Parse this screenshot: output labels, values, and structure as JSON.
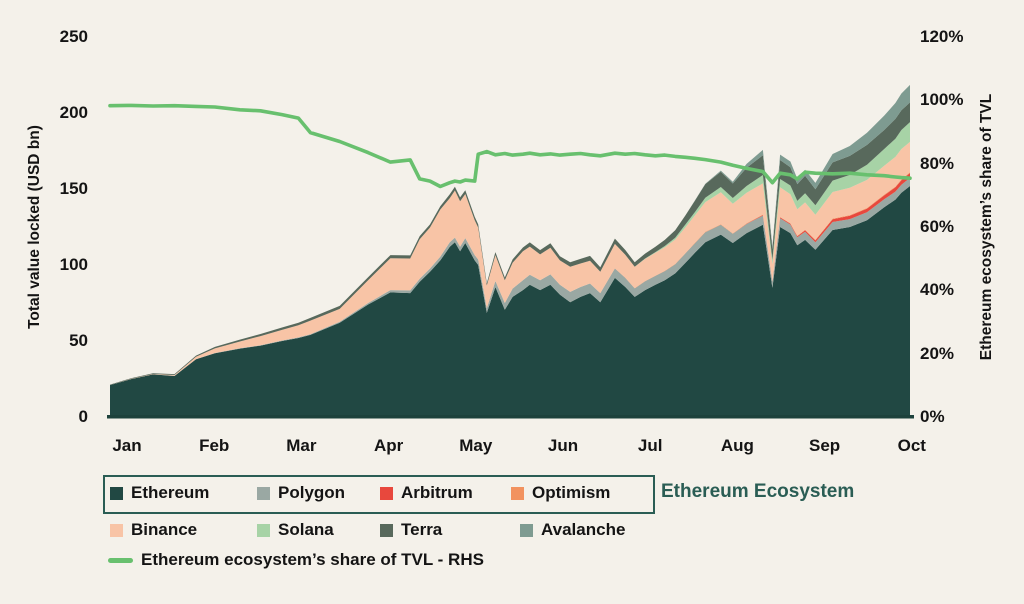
{
  "page": {
    "background": "#f4f1ea",
    "text_color": "#141414",
    "accent_teal": "#2a5d54",
    "baseline_color": "#1d423c"
  },
  "chart_data": {
    "type": "stacked-area+line",
    "title": "",
    "units": "USD bn",
    "grid": "off",
    "legend_position": "bottom",
    "left_axis": {
      "title": "Total value locked (USD bn)",
      "tick_labels": [
        "0",
        "50",
        "100",
        "150",
        "200",
        "250"
      ],
      "range": [
        0,
        250
      ]
    },
    "right_axis": {
      "title": "Ethereum ecosystem’s share of TVL",
      "tick_labels": [
        "0%",
        "20%",
        "40%",
        "60%",
        "80%",
        "100%",
        "120%"
      ],
      "range": [
        0,
        120
      ]
    },
    "x_axis": {
      "labels": [
        "Jan",
        "Feb",
        "Mar",
        "Apr",
        "May",
        "Jun",
        "Jul",
        "Aug",
        "Sep",
        "Oct"
      ],
      "range_months": [
        0,
        9.3
      ]
    },
    "x": [
      0,
      0.25,
      0.5,
      0.75,
      1.0,
      1.22,
      1.51,
      1.75,
      2.0,
      2.19,
      2.33,
      2.67,
      3.0,
      3.26,
      3.49,
      3.6,
      3.72,
      3.84,
      3.95,
      4.01,
      4.07,
      4.13,
      4.24,
      4.28,
      4.38,
      4.48,
      4.59,
      4.68,
      4.8,
      4.88,
      5.0,
      5.12,
      5.23,
      5.35,
      5.47,
      5.58,
      5.7,
      5.87,
      5.99,
      6.1,
      6.22,
      6.34,
      6.45,
      6.57,
      6.69,
      6.8,
      6.92,
      7.1,
      7.24,
      7.4,
      7.59,
      7.7,
      7.79,
      7.91,
      7.99,
      8.08,
      8.2,
      8.4,
      8.6,
      8.8,
      9.0,
      9.13,
      9.2,
      9.3
    ],
    "series": [
      {
        "name": "Ethereum",
        "color": "#214843",
        "values": [
          21,
          25,
          28,
          27,
          38,
          42,
          45,
          47,
          50,
          52,
          54,
          62,
          74,
          82,
          81.5,
          89,
          95.5,
          103,
          112,
          115,
          109,
          114.5,
          103,
          100,
          68.5,
          85.5,
          70.5,
          79,
          83.5,
          87,
          83.5,
          87,
          80.5,
          75.5,
          79,
          81.5,
          75.5,
          91.5,
          85.5,
          79,
          83.5,
          87,
          90,
          94.5,
          101.5,
          108,
          115,
          120,
          114.5,
          121,
          126.5,
          85,
          125,
          121,
          113,
          116.5,
          110,
          123,
          125,
          129.5,
          138,
          143,
          147.5,
          152
        ]
      },
      {
        "name": "Polygon",
        "color": "#9aa8a3",
        "values": [
          0,
          0,
          0,
          0.1,
          0.1,
          0.1,
          0.2,
          0.2,
          0.3,
          0.35,
          0.4,
          0.6,
          1,
          1.5,
          1.8,
          2,
          2.2,
          2.5,
          3,
          3,
          3,
          3.2,
          3.5,
          3.6,
          3,
          4,
          4.5,
          5.5,
          6.5,
          6.6,
          6.5,
          6.8,
          6.5,
          6.8,
          6.5,
          6.3,
          6,
          6.2,
          6,
          5.6,
          5.8,
          5.8,
          6,
          6,
          6.2,
          6.3,
          6.6,
          6.5,
          6,
          6,
          6,
          4,
          5.8,
          5.6,
          5.2,
          5.4,
          5,
          5.3,
          5.2,
          5.2,
          5.2,
          5.3,
          5.3,
          5.3
        ]
      },
      {
        "name": "Arbitrum",
        "color": "#e8483d",
        "values": [
          0,
          0,
          0,
          0,
          0,
          0,
          0,
          0,
          0,
          0,
          0,
          0,
          0,
          0,
          0,
          0,
          0,
          0,
          0,
          0,
          0,
          0,
          0,
          0,
          0,
          0,
          0,
          0,
          0,
          0,
          0,
          0,
          0,
          0,
          0,
          0,
          0,
          0,
          0,
          0,
          0,
          0,
          0,
          0,
          0,
          0,
          0,
          0,
          0,
          0.2,
          0.4,
          0.2,
          0.5,
          0.6,
          0.7,
          1,
          1.2,
          1.8,
          2.2,
          2.4,
          2.6,
          2.8,
          3,
          3.2
        ]
      },
      {
        "name": "Optimism",
        "color": "#f2925f",
        "values": [
          0,
          0,
          0,
          0,
          0,
          0,
          0,
          0,
          0,
          0,
          0,
          0,
          0,
          0,
          0,
          0,
          0,
          0,
          0,
          0,
          0,
          0,
          0,
          0,
          0,
          0,
          0,
          0,
          0,
          0,
          0,
          0,
          0,
          0,
          0,
          0,
          0,
          0.2,
          0.2,
          0.2,
          0.2,
          0.2,
          0.2,
          0.2,
          0.2,
          0.3,
          0.3,
          0.3,
          0.3,
          0.3,
          0.3,
          0.2,
          0.3,
          0.3,
          0.3,
          0.3,
          0.4,
          0.4,
          0.4,
          0.4,
          0.5,
          0.5,
          0.5,
          0.5
        ]
      },
      {
        "name": "Binance",
        "color": "#f8c4a6",
        "values": [
          0,
          0.2,
          0.3,
          0.5,
          1.5,
          3,
          4.5,
          6,
          7,
          8,
          9,
          8.5,
          15,
          21,
          21,
          26,
          27,
          31,
          29,
          31,
          30,
          29,
          23,
          21,
          15,
          17,
          15,
          17,
          19,
          18.5,
          17,
          17.5,
          16,
          16.5,
          15.5,
          15,
          14,
          16,
          15,
          14,
          14.5,
          15,
          15.5,
          16,
          17,
          18,
          19.5,
          21,
          19.5,
          20,
          20.5,
          11,
          19.5,
          19,
          17.5,
          18,
          16.5,
          17.5,
          18,
          18.5,
          19,
          19.5,
          20,
          20
        ]
      },
      {
        "name": "Solana",
        "color": "#a7d3a6",
        "values": [
          0,
          0,
          0,
          0,
          0,
          0,
          0,
          0,
          0,
          0,
          0,
          0,
          0,
          0,
          0,
          0,
          0,
          0,
          0,
          0,
          0,
          0,
          0,
          0,
          0,
          0,
          0,
          0,
          0,
          0,
          0,
          0,
          0,
          0,
          0,
          0,
          0,
          0,
          0,
          0,
          0.3,
          0.5,
          0.8,
          1.2,
          1.8,
          2.2,
          2.8,
          3.5,
          3.8,
          4.5,
          5.5,
          3,
          5.5,
          5.8,
          5.5,
          6,
          6.2,
          7.5,
          8.5,
          10,
          11,
          12,
          12.5,
          13
        ]
      },
      {
        "name": "Terra",
        "color": "#58695c",
        "values": [
          0.3,
          0.4,
          0.5,
          0.6,
          0.8,
          1,
          1.2,
          1.4,
          1.6,
          1.7,
          1.8,
          2,
          2,
          2,
          2,
          2,
          2,
          2.2,
          2.5,
          2.5,
          2.5,
          2.5,
          2.2,
          2.1,
          1.5,
          2,
          1.8,
          2.2,
          2.5,
          2.8,
          2.8,
          3,
          2.8,
          3,
          3,
          3.2,
          3,
          3.5,
          3.2,
          3,
          3.2,
          3.5,
          4,
          5,
          6,
          7.5,
          9,
          10,
          9.5,
          12,
          13,
          7,
          12.5,
          12,
          11,
          11.5,
          10.5,
          12,
          12.5,
          13,
          12.5,
          13,
          13,
          13
        ]
      },
      {
        "name": "Avalanche",
        "color": "#7e9b91",
        "values": [
          0,
          0,
          0,
          0,
          0,
          0,
          0,
          0,
          0,
          0,
          0,
          0,
          0,
          0,
          0,
          0,
          0,
          0,
          0,
          0,
          0,
          0,
          0,
          0,
          0,
          0,
          0,
          0,
          0,
          0,
          0,
          0,
          0,
          0,
          0,
          0,
          0,
          0,
          0,
          0,
          0,
          0,
          0,
          0,
          0,
          0.2,
          0.3,
          0.8,
          1.2,
          2.5,
          3.5,
          2,
          3.5,
          3.8,
          3.5,
          4,
          4.2,
          5.5,
          6.5,
          8,
          9.5,
          10.5,
          11,
          11.5
        ]
      }
    ],
    "line": {
      "name": "Ethereum ecosystem’s share of TVL - RHS",
      "color": "#68c06e",
      "axis": "right",
      "values": [
        98.3,
        98.4,
        98.2,
        98.3,
        98.1,
        97.9,
        97,
        96.7,
        95.5,
        94.4,
        89.8,
        87,
        83.5,
        80.5,
        81.2,
        75.2,
        74.5,
        72.8,
        74,
        74.5,
        74.2,
        74.8,
        74.5,
        83,
        83.8,
        82.8,
        83.2,
        82.7,
        83,
        83.3,
        82.8,
        83.1,
        82.7,
        83,
        83.2,
        82.8,
        82.5,
        83.3,
        83,
        83.2,
        82.8,
        82.5,
        82.7,
        82.3,
        82,
        81.7,
        81.3,
        80.5,
        79.5,
        78.5,
        77.5,
        74,
        77,
        76.5,
        75.2,
        77.3,
        77,
        76.8,
        77,
        76.5,
        76.2,
        75.8,
        75.6,
        75.4
      ]
    },
    "legend_group_title": "Ethereum Ecosystem"
  }
}
